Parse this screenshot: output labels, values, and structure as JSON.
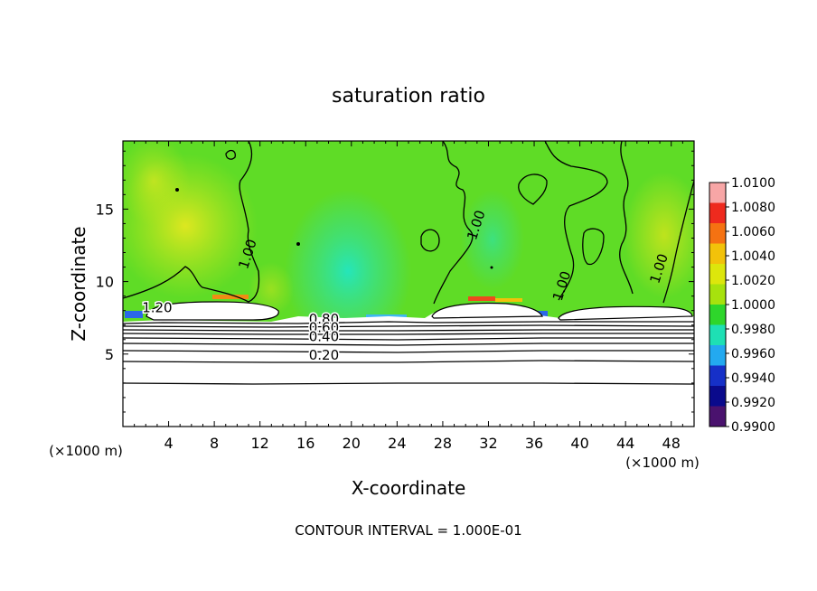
{
  "chart_data": {
    "type": "heatmap",
    "title": "saturation ratio",
    "xlabel": "X-coordinate",
    "ylabel": "Z-coordinate",
    "x_unit_left": "(×1000 m)",
    "x_unit_right": "(×1000 m)",
    "xlim": [
      0,
      50
    ],
    "ylim": [
      0,
      19.7
    ],
    "x_ticks": [
      4,
      8,
      12,
      16,
      20,
      24,
      28,
      32,
      36,
      40,
      44,
      48
    ],
    "x_tick_labels": [
      "4",
      "8",
      "12",
      "16",
      "20",
      "24",
      "28",
      "32",
      "36",
      "40",
      "44",
      "48"
    ],
    "y_ticks": [
      5,
      10,
      15
    ],
    "y_tick_labels": [
      "5",
      "10",
      "15"
    ],
    "colorbar": {
      "labels": [
        "1.0100",
        "1.0080",
        "1.0060",
        "1.0040",
        "1.0020",
        "1.0000",
        "0.9980",
        "0.9960",
        "0.9940",
        "0.9920",
        "0.9900"
      ],
      "colors": [
        "#f7a6a6",
        "#ee2a1e",
        "#f57212",
        "#f2c20a",
        "#dde60c",
        "#a7e20d",
        "#2ed62b",
        "#1ee0b4",
        "#23a9f0",
        "#1630c8",
        "#0a0a8c",
        "#4a126e"
      ]
    },
    "contour_labels": [
      {
        "text": "1.20",
        "x": 3.0,
        "z": 7.9
      },
      {
        "text": "0.80",
        "x": 17.6,
        "z": 7.1
      },
      {
        "text": "0.60",
        "x": 17.6,
        "z": 6.5
      },
      {
        "text": "0.40",
        "x": 17.6,
        "z": 5.9
      },
      {
        "text": "0.20",
        "x": 17.6,
        "z": 4.6
      },
      {
        "text": "1.00",
        "x": 11.3,
        "z": 11.8
      },
      {
        "text": "1.00",
        "x": 31.3,
        "z": 13.8
      },
      {
        "text": "1.00",
        "x": 38.8,
        "z": 9.6
      },
      {
        "text": "1.00",
        "x": 47.3,
        "z": 10.8
      }
    ],
    "contour_levels_z": [
      3.0,
      4.6,
      5.3,
      5.9,
      6.2,
      6.5,
      6.8,
      7.1,
      7.4
    ],
    "footer": "CONTOUR INTERVAL = 1.000E-01"
  }
}
